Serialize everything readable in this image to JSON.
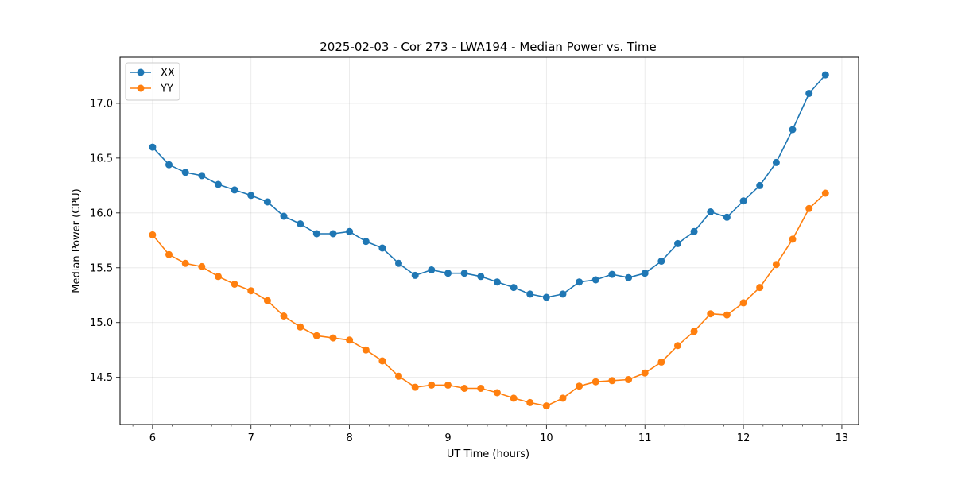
{
  "chart_data": {
    "type": "line",
    "title": "2025-02-03 - Cor 273 - LWA194 - Median Power vs. Time",
    "xlabel": "UT Time (hours)",
    "ylabel": "Median Power (CPU)",
    "xlim": [
      5.67,
      13.17
    ],
    "ylim": [
      14.07,
      17.42
    ],
    "xticks": [
      6,
      7,
      8,
      9,
      10,
      11,
      12,
      13
    ],
    "yticks": [
      14.5,
      15.0,
      15.5,
      16.0,
      16.5,
      17.0
    ],
    "ytick_labels": [
      "14.5",
      "15.0",
      "15.5",
      "16.0",
      "16.5",
      "17.0"
    ],
    "grid": true,
    "legend_position": "upper-left",
    "x": [
      6.0,
      6.1667,
      6.3333,
      6.5,
      6.6667,
      6.8333,
      7.0,
      7.1667,
      7.3333,
      7.5,
      7.6667,
      7.8333,
      8.0,
      8.1667,
      8.3333,
      8.5,
      8.6667,
      8.8333,
      9.0,
      9.1667,
      9.3333,
      9.5,
      9.6667,
      9.8333,
      10.0,
      10.1667,
      10.3333,
      10.5,
      10.6667,
      10.8333,
      11.0,
      11.1667,
      11.3333,
      11.5,
      11.6667,
      11.8333,
      12.0,
      12.1667,
      12.3333,
      12.5,
      12.6667,
      12.8333
    ],
    "series": [
      {
        "name": "XX",
        "color": "#1f77b4",
        "values": [
          16.6,
          16.44,
          16.37,
          16.34,
          16.26,
          16.21,
          16.16,
          16.1,
          15.97,
          15.9,
          15.81,
          15.81,
          15.83,
          15.74,
          15.68,
          15.54,
          15.43,
          15.48,
          15.45,
          15.45,
          15.42,
          15.37,
          15.32,
          15.26,
          15.23,
          15.26,
          15.37,
          15.39,
          15.44,
          15.41,
          15.45,
          15.56,
          15.72,
          15.83,
          16.01,
          15.96,
          16.11,
          16.25,
          16.46,
          16.76,
          17.09,
          17.26
        ]
      },
      {
        "name": "YY",
        "color": "#ff7f0e",
        "values": [
          15.8,
          15.62,
          15.54,
          15.51,
          15.42,
          15.35,
          15.29,
          15.2,
          15.06,
          14.96,
          14.88,
          14.86,
          14.84,
          14.75,
          14.65,
          14.51,
          14.41,
          14.43,
          14.43,
          14.4,
          14.4,
          14.36,
          14.31,
          14.27,
          14.24,
          14.31,
          14.42,
          14.46,
          14.47,
          14.48,
          14.54,
          14.64,
          14.79,
          14.92,
          15.08,
          15.07,
          15.18,
          15.32,
          15.53,
          15.76,
          16.04,
          16.18
        ]
      }
    ]
  }
}
